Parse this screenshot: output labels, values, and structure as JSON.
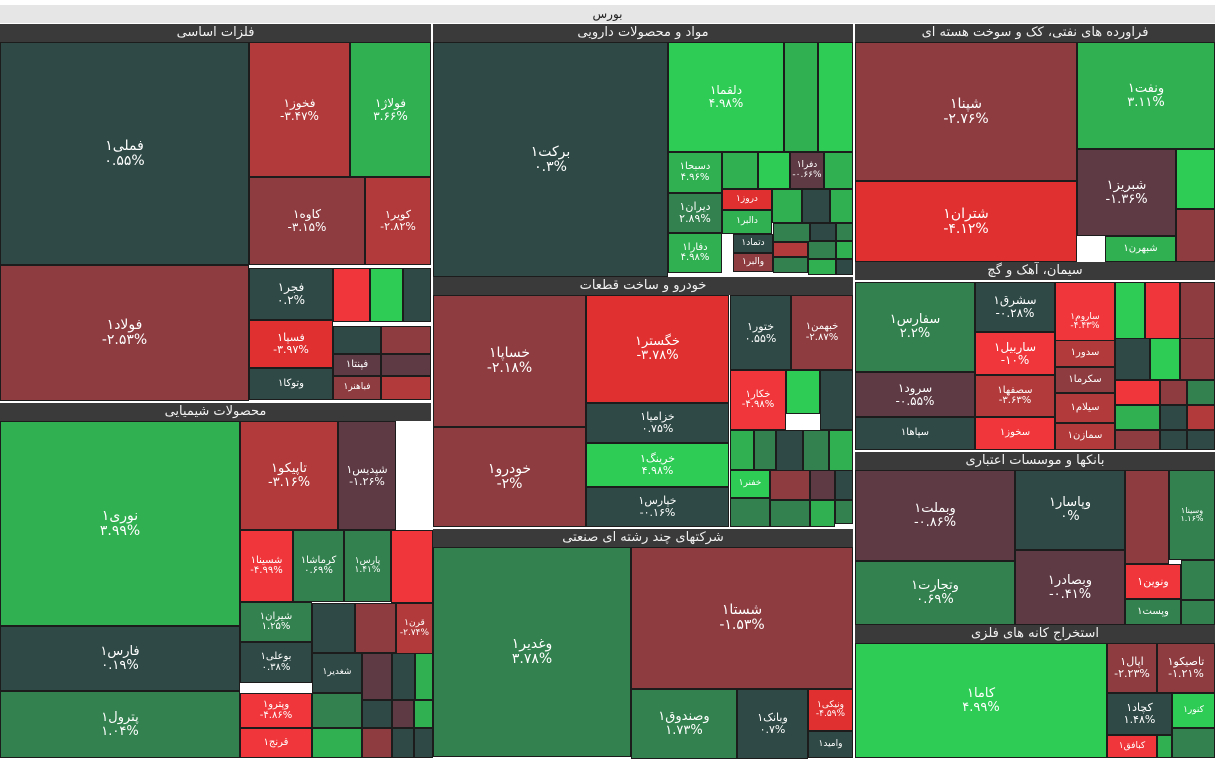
{
  "chart_data": {
    "type": "treemap",
    "title": "بورس",
    "colors": {
      "up5": "#2ecc55",
      "up4": "#31b052",
      "up2": "#32814e",
      "flat": "#2f4a46",
      "down1": "#5e3a44",
      "down2": "#8e3c40",
      "down3": "#b33a3a",
      "down4": "#e0302f",
      "down5": "#f0363a"
    },
    "sectors": [
      {
        "name": "فلزات اساسی",
        "stocks": [
          {
            "s": "فملی۱",
            "c": "۰.۵۵%"
          },
          {
            "s": "فخوز۱",
            "c": "-۳.۴۷%"
          },
          {
            "s": "فولاژ۱",
            "c": "۳.۶۶%"
          },
          {
            "s": "کاوه۱",
            "c": "-۳.۱۵%"
          },
          {
            "s": "کویر۱",
            "c": "-۲.۸۲%"
          },
          {
            "s": "فولاد۱",
            "c": "-۲.۵۳%"
          },
          {
            "s": "فجر۱",
            "c": "۰.۲%"
          },
          {
            "s": "فسپا۱",
            "c": "-۳.۹۷%"
          },
          {
            "s": "فپنتا۱",
            "c": ""
          },
          {
            "s": "وتوکا۱",
            "c": ""
          },
          {
            "s": "فباهنر۱",
            "c": ""
          }
        ]
      },
      {
        "name": "مواد و محصولات دارویی",
        "stocks": [
          {
            "s": "برکت۱",
            "c": "۰.۳%"
          },
          {
            "s": "دلقما۱",
            "c": "۴.۹۸%"
          },
          {
            "s": "دسبحا۱",
            "c": "۴.۹۶%"
          },
          {
            "s": "دفرا۱",
            "c": "-۰.۶۶%"
          },
          {
            "s": "دروز۱",
            "c": ""
          },
          {
            "s": "دیران۱",
            "c": "۲.۸۹%"
          },
          {
            "s": "دالبر۱",
            "c": ""
          },
          {
            "s": "دتماد۱",
            "c": ""
          },
          {
            "s": "دفارا۱",
            "c": "۴.۹۸%"
          },
          {
            "s": "والبر۱",
            "c": ""
          }
        ]
      },
      {
        "name": "فراورده های نفتی، کک و سوخت هسته ای",
        "stocks": [
          {
            "s": "شپنا۱",
            "c": "-۲.۷۶%"
          },
          {
            "s": "ونفت۱",
            "c": "۳.۱۱%"
          },
          {
            "s": "شبریز۱",
            "c": "-۱.۳۶%"
          },
          {
            "s": "شتران۱",
            "c": "-۴.۱۲%"
          },
          {
            "s": "شبهرن۱",
            "c": ""
          }
        ]
      },
      {
        "name": "خودرو و ساخت قطعات",
        "stocks": [
          {
            "s": "خساپا۱",
            "c": "-۲.۱۸%"
          },
          {
            "s": "خگستر۱",
            "c": "-۳.۷۸%"
          },
          {
            "s": "ختور۱",
            "c": "۰.۵۵%"
          },
          {
            "s": "خبهمن۱",
            "c": "-۲.۸۷%"
          },
          {
            "s": "خکار۱",
            "c": "-۴.۹۸%"
          },
          {
            "s": "خزامیا۱",
            "c": "۰.۷۵%"
          },
          {
            "s": "خرینگ۱",
            "c": "۴.۹۸%"
          },
          {
            "s": "خودرو۱",
            "c": "-۲%"
          },
          {
            "s": "خپارس۱",
            "c": "-۰.۱۶%"
          },
          {
            "s": "خفنر۱",
            "c": ""
          }
        ]
      },
      {
        "name": "سیمان، آهک و گچ",
        "stocks": [
          {
            "s": "سفارس۱",
            "c": "۲.۲%"
          },
          {
            "s": "سشرق۱",
            "c": "-۰.۲۸%"
          },
          {
            "s": "ساروم۱",
            "c": "-۴.۴۳%"
          },
          {
            "s": "ساربیل۱",
            "c": "-۱۰%"
          },
          {
            "s": "سدور۱",
            "c": ""
          },
          {
            "s": "سرود۱",
            "c": "-۰.۵۵%"
          },
          {
            "s": "سکرما۱",
            "c": ""
          },
          {
            "s": "سصفها۱",
            "c": "-۳.۶۳%"
          },
          {
            "s": "سیلام۱",
            "c": ""
          },
          {
            "s": "سپاها۱",
            "c": ""
          },
          {
            "s": "سخوز۱",
            "c": ""
          },
          {
            "s": "سمازن۱",
            "c": ""
          }
        ]
      },
      {
        "name": "محصولات شیمیایی",
        "stocks": [
          {
            "s": "نوری۱",
            "c": "۳.۹۹%"
          },
          {
            "s": "تاپیکو۱",
            "c": "-۳.۱۶%"
          },
          {
            "s": "شپدیس۱",
            "c": "-۱.۲۶%"
          },
          {
            "s": "شسینا۱",
            "c": "-۴.۹۹%"
          },
          {
            "s": "کرماشا۱",
            "c": "۰.۶۹%"
          },
          {
            "s": "پارس۱",
            "c": "۱.۴۱%"
          },
          {
            "s": "فارس۱",
            "c": "۰.۱۹%"
          },
          {
            "s": "شیران۱",
            "c": "۱.۲۵%"
          },
          {
            "s": "قرن۱",
            "c": "-۲.۷۴%"
          },
          {
            "s": "بوعلی۱",
            "c": "۰.۳۸%"
          },
          {
            "s": "شغدیر۱",
            "c": ""
          },
          {
            "s": "پترول۱",
            "c": "۱.۰۴%"
          },
          {
            "s": "وپترو۱",
            "c": "-۴.۸۶%"
          },
          {
            "s": "قرنج۱",
            "c": ""
          }
        ]
      },
      {
        "name": "بانکها و موسسات اعتباری",
        "stocks": [
          {
            "s": "وبملت۱",
            "c": "-۰.۸۶%"
          },
          {
            "s": "وپاسار۱",
            "c": "۰%"
          },
          {
            "s": "وسینا۱",
            "c": "۱.۱۶%"
          },
          {
            "s": "وتجارت۱",
            "c": "۰.۶۹%"
          },
          {
            "s": "وبصادر۱",
            "c": "-۰.۴۱%"
          },
          {
            "s": "ونوین۱",
            "c": ""
          },
          {
            "s": "وپست۱",
            "c": ""
          }
        ]
      },
      {
        "name": "شرکتهای چند رشته ای صنعتی",
        "stocks": [
          {
            "s": "وغدیر۱",
            "c": "۳.۷۸%"
          },
          {
            "s": "شستا۱",
            "c": "-۱.۵۳%"
          },
          {
            "s": "وصندوق۱",
            "c": "۱.۷۳%"
          },
          {
            "s": "وبانک۱",
            "c": "۰.۷%"
          },
          {
            "s": "ونیکی۱",
            "c": "-۴.۵۹%"
          },
          {
            "s": "وامید۱",
            "c": ""
          }
        ]
      },
      {
        "name": "استخراج کانه های فلزی",
        "stocks": [
          {
            "s": "کاما۱",
            "c": "۴.۹۹%"
          },
          {
            "s": "اپال۱",
            "c": "-۲.۲۳%"
          },
          {
            "s": "تاصیکو۱",
            "c": "-۱.۲۱%"
          },
          {
            "s": "کنور۱",
            "c": ""
          },
          {
            "s": "کچاد۱",
            "c": "۱.۴۸%"
          },
          {
            "s": "کبافق۱",
            "c": ""
          }
        ]
      }
    ]
  }
}
